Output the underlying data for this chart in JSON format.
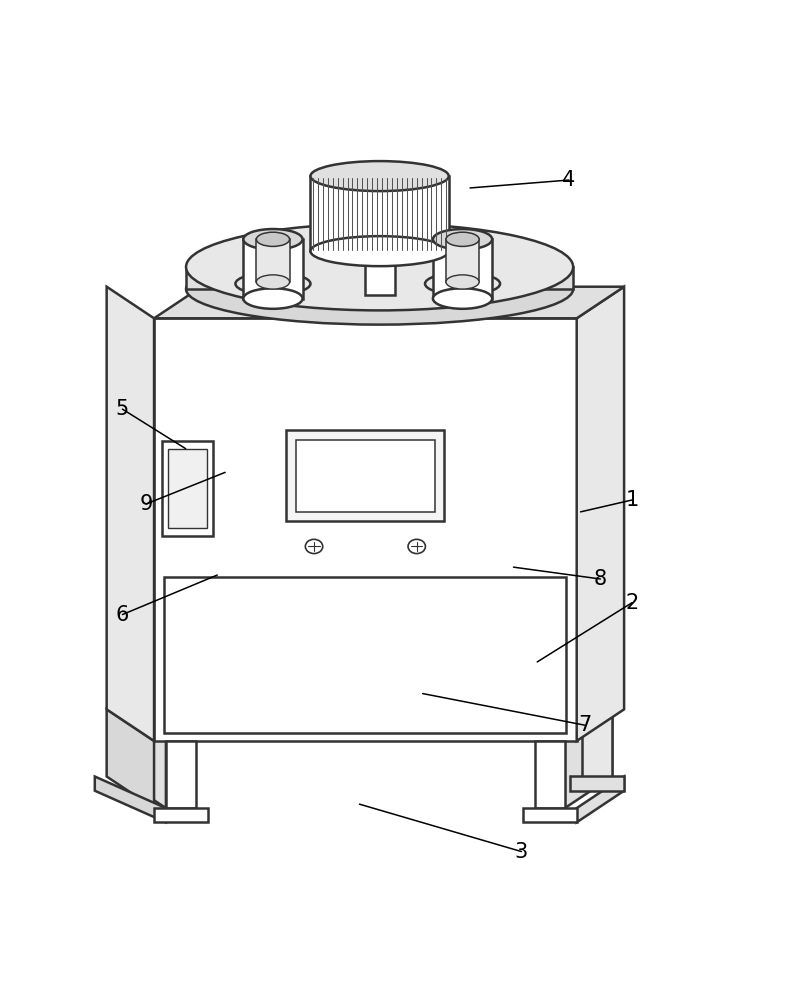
{
  "bg_color": "#ffffff",
  "line_color": "#333333",
  "line_width": 1.8,
  "label_fontsize": 15,
  "labels_info": [
    [
      1,
      0.8,
      0.5,
      0.735,
      0.485
    ],
    [
      2,
      0.8,
      0.37,
      0.68,
      0.295
    ],
    [
      3,
      0.66,
      0.055,
      0.455,
      0.115
    ],
    [
      4,
      0.72,
      0.905,
      0.595,
      0.895
    ],
    [
      5,
      0.155,
      0.615,
      0.235,
      0.565
    ],
    [
      6,
      0.155,
      0.355,
      0.275,
      0.405
    ],
    [
      7,
      0.74,
      0.215,
      0.535,
      0.255
    ],
    [
      8,
      0.76,
      0.4,
      0.65,
      0.415
    ],
    [
      9,
      0.185,
      0.495,
      0.285,
      0.535
    ]
  ]
}
